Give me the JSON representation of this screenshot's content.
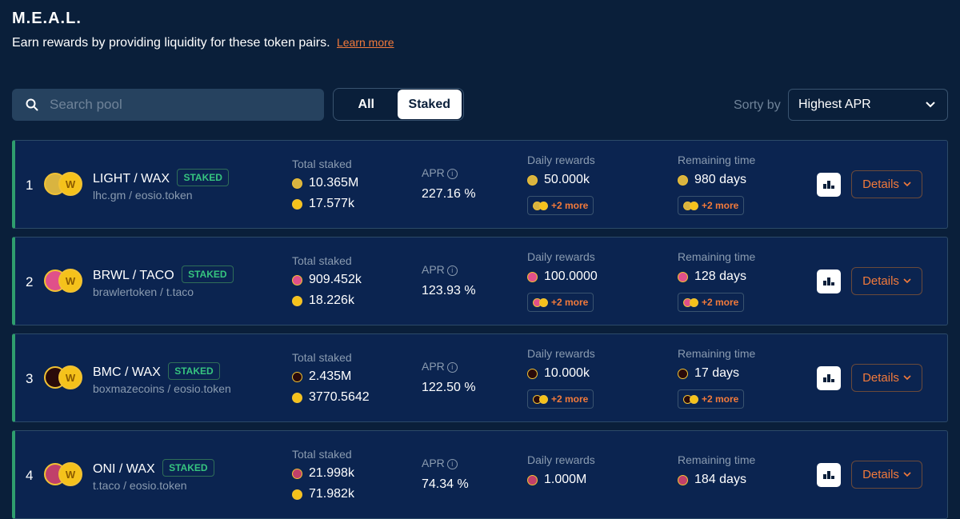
{
  "header": {
    "title": "M.E.A.L.",
    "subtitle": "Earn rewards by providing liquidity for these token pairs.",
    "learn_more": "Learn more"
  },
  "toolbar": {
    "search_placeholder": "Search pool",
    "filter_all": "All",
    "filter_staked": "Staked",
    "sort_label": "Sorty by",
    "sort_value": "Highest APR"
  },
  "labels": {
    "total_staked": "Total staked",
    "apr": "APR",
    "daily_rewards": "Daily rewards",
    "remaining_time": "Remaining time",
    "staked_badge": "STAKED",
    "details": "Details"
  },
  "colors": {
    "background": "#0a1f3a",
    "row_background": "#0b2450",
    "accent_orange": "#f27a3b",
    "staked_green": "#36c47f"
  },
  "pools": [
    {
      "rank": "1",
      "pair": "LIGHT / WAX",
      "contracts": "lhc.gm / eosio.token",
      "staked_a": "10.365M",
      "staked_b": "17.577k",
      "apr": "227.16 %",
      "daily_reward": "50.000k",
      "more_rewards": "+2 more",
      "remaining": "980 days",
      "more_remaining": "+2 more",
      "token_a_color": "#d9b440",
      "token_a_icon": "light-coin-icon"
    },
    {
      "rank": "2",
      "pair": "BRWL / TACO",
      "contracts": "brawlertoken / t.taco",
      "staked_a": "909.452k",
      "staked_b": "18.226k",
      "apr": "123.93 %",
      "daily_reward": "100.0000",
      "more_rewards": "+2 more",
      "remaining": "128 days",
      "more_remaining": "+2 more",
      "token_a_color": "#e0508a",
      "token_a_icon": "brwl-coin-icon"
    },
    {
      "rank": "3",
      "pair": "BMC / WAX",
      "contracts": "boxmazecoins / eosio.token",
      "staked_a": "2.435M",
      "staked_b": "3770.5642",
      "apr": "122.50 %",
      "daily_reward": "10.000k",
      "more_rewards": "+2 more",
      "remaining": "17 days",
      "more_remaining": "+2 more",
      "token_a_color": "#2a0a0a",
      "token_a_icon": "bmc-coin-icon"
    },
    {
      "rank": "4",
      "pair": "ONI / WAX",
      "contracts": "t.taco / eosio.token",
      "staked_a": "21.998k",
      "staked_b": "71.982k",
      "apr": "74.34 %",
      "daily_reward": "1.000M",
      "more_rewards": "",
      "remaining": "184 days",
      "more_remaining": "",
      "token_a_color": "#c0406a",
      "token_a_icon": "oni-coin-icon"
    }
  ]
}
